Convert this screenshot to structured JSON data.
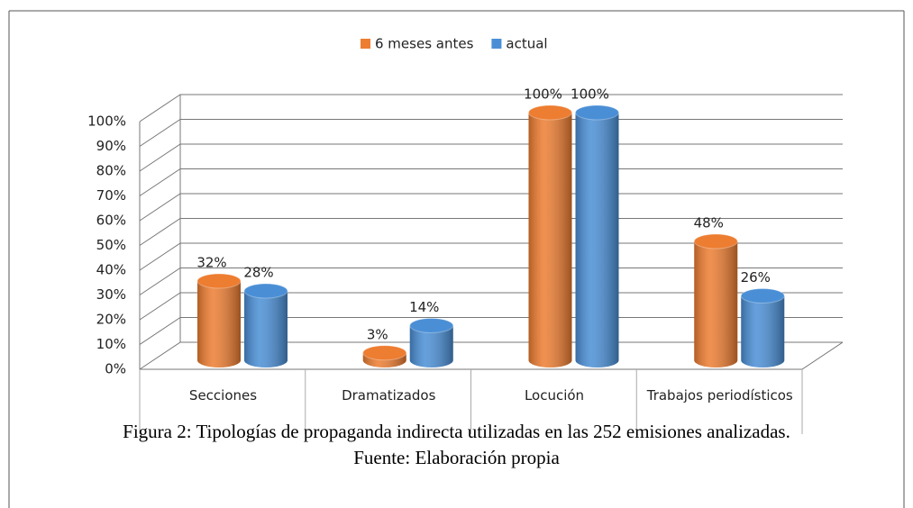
{
  "chart_data": {
    "type": "bar",
    "caption": [
      "Figura 2: Tipologías de propaganda indirecta utilizadas en las 252 emisiones analizadas.",
      "Fuente: Elaboración propia"
    ],
    "categories": [
      "Secciones",
      "Dramatizados",
      "Locución",
      "Trabajos periodísticos"
    ],
    "series": [
      {
        "name": "6 meses antes",
        "color": "#ed7d31",
        "values": [
          32,
          3,
          100,
          48
        ],
        "value_labels": [
          "32%",
          "3%",
          "100%",
          "48%"
        ]
      },
      {
        "name": "actual",
        "color": "#4a8fd6",
        "values": [
          28,
          14,
          100,
          26
        ],
        "value_labels": [
          "28%",
          "14%",
          "100%",
          "26%"
        ]
      }
    ],
    "ylim": [
      0,
      100
    ],
    "yticks": [
      {
        "value": 0,
        "label": "0%"
      },
      {
        "value": 10,
        "label": "10%"
      },
      {
        "value": 20,
        "label": "20%"
      },
      {
        "value": 30,
        "label": "30%"
      },
      {
        "value": 40,
        "label": "40%"
      },
      {
        "value": 50,
        "label": "50%"
      },
      {
        "value": 60,
        "label": "60%"
      },
      {
        "value": 70,
        "label": "70%"
      },
      {
        "value": 80,
        "label": "80%"
      },
      {
        "value": 90,
        "label": "90%"
      },
      {
        "value": 100,
        "label": "100%"
      }
    ],
    "grid": true,
    "legend": "top"
  }
}
